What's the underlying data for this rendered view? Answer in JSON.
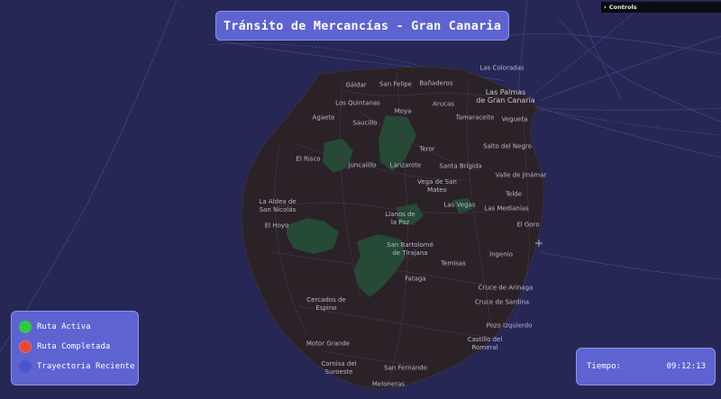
{
  "header": {
    "title": "Tránsito de Mercancías - Gran Canaria"
  },
  "controls": {
    "label": "Controls"
  },
  "legend": {
    "items": [
      {
        "label": "Ruta Activa",
        "color": "#2ecc40"
      },
      {
        "label": "Ruta Completada",
        "color": "#e8473b"
      },
      {
        "label": "Trayectoria Reciente",
        "color": "#4a55d0"
      }
    ]
  },
  "clock": {
    "label": "Tiempo:",
    "value": "09:12:13"
  },
  "map": {
    "places": [
      {
        "name": "Las Coloradas"
      },
      {
        "name": "Las Palmas\nde Gran Canaria"
      },
      {
        "name": "Gáldar"
      },
      {
        "name": "San Felipe"
      },
      {
        "name": "Bañaderos"
      },
      {
        "name": "Los Quintanas"
      },
      {
        "name": "Arucas"
      },
      {
        "name": "Agaete"
      },
      {
        "name": "Moya"
      },
      {
        "name": "Tamaraceite"
      },
      {
        "name": "Vegueta"
      },
      {
        "name": "Saucillo"
      },
      {
        "name": "Teror"
      },
      {
        "name": "Salto del Negro"
      },
      {
        "name": "El Risco"
      },
      {
        "name": "Juncalillo"
      },
      {
        "name": "Lanzarote"
      },
      {
        "name": "Santa Brígida"
      },
      {
        "name": "Valle de Jinámar"
      },
      {
        "name": "Vega de San\nMateo"
      },
      {
        "name": "Telde"
      },
      {
        "name": "La Aldea de\nSan Nicolás"
      },
      {
        "name": "Las Vegas"
      },
      {
        "name": "Las Medianías"
      },
      {
        "name": "El Hoyo"
      },
      {
        "name": "Llanos de\nla Paz"
      },
      {
        "name": "El Goro"
      },
      {
        "name": "San Bartolomé\nde Tirajana"
      },
      {
        "name": "Ingenio"
      },
      {
        "name": "Temisas"
      },
      {
        "name": "Fataga"
      },
      {
        "name": "Cruce de Arinaga"
      },
      {
        "name": "Cercados de\nEspino"
      },
      {
        "name": "Cruce de Sardina"
      },
      {
        "name": "Pozo Izquierdo"
      },
      {
        "name": "Castillo del\nRomeral"
      },
      {
        "name": "Motor Grande"
      },
      {
        "name": "Cornisa del\nSuroeste"
      },
      {
        "name": "San Fernando"
      },
      {
        "name": "Meloneras"
      }
    ]
  }
}
